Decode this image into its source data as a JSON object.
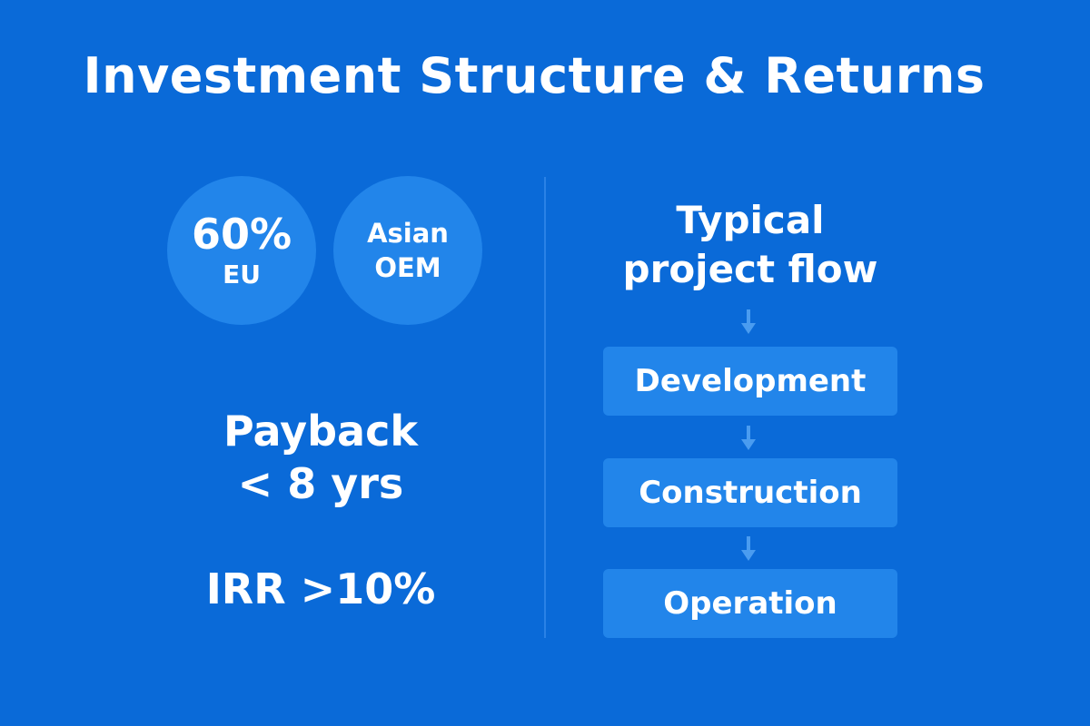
{
  "title": "Investment Structure & Returns",
  "left": {
    "circles": [
      {
        "big": "60%",
        "small": "EU"
      },
      {
        "line1": "Asian",
        "line2": "OEM"
      }
    ],
    "payback": {
      "line1": "Payback",
      "line2": "< 8 yrs"
    },
    "irr": "IRR >10%"
  },
  "right": {
    "heading": {
      "line1": "Typical",
      "line2": "project flow"
    },
    "steps": [
      "Development",
      "Construction",
      "Operation"
    ]
  },
  "colors": {
    "background": "#0a6ad8",
    "panel": "#2285ea",
    "arrow": "#4a9cf0",
    "text": "#ffffff"
  },
  "icons": {
    "flow_arrow": "arrow-down-icon"
  }
}
